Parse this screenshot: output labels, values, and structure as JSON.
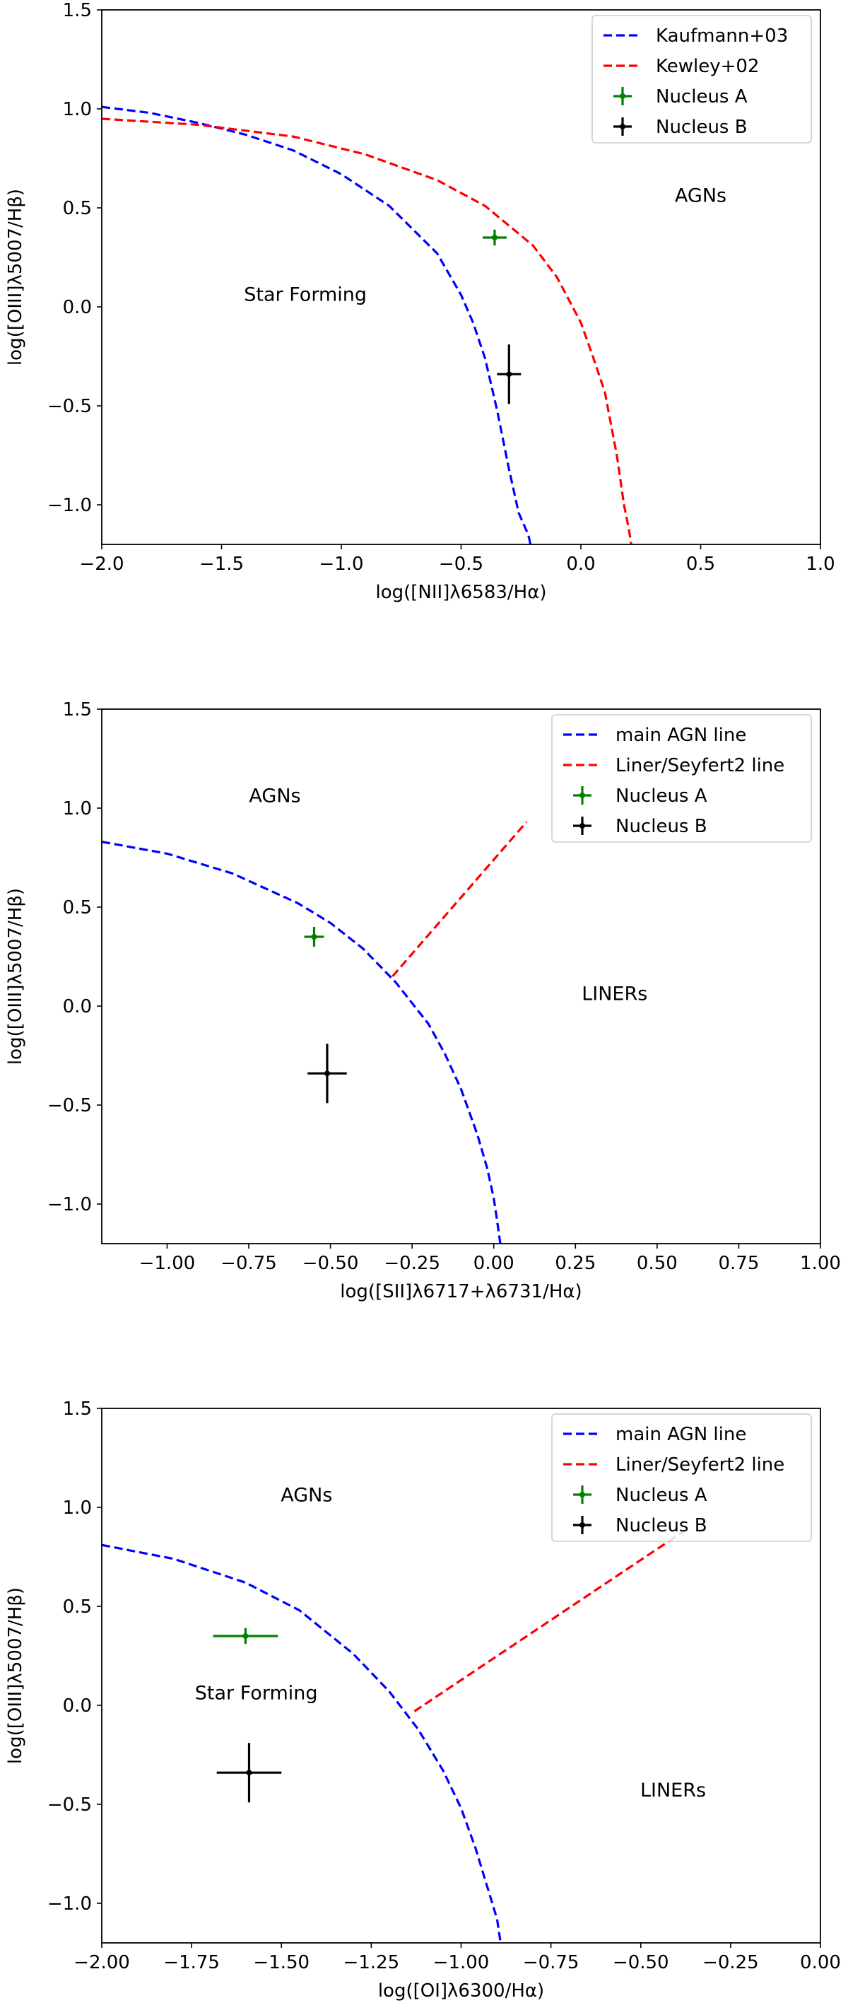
{
  "chart_data": [
    {
      "type": "scatter",
      "xlabel": "log([NII]λ6583/Hα)",
      "ylabel": "log([OIII]λ5007/Hβ)",
      "xlim": [
        -2.0,
        1.0
      ],
      "ylim": [
        -1.2,
        1.5
      ],
      "xticks": [
        -2.0,
        -1.5,
        -1.0,
        -0.5,
        0.0,
        0.5,
        1.0
      ],
      "xtick_labels": [
        "−2.0",
        "−1.5",
        "−1.0",
        "−0.5",
        "0.0",
        "0.5",
        "1.0"
      ],
      "yticks": [
        -1.0,
        -0.5,
        0.0,
        0.5,
        1.0,
        1.5
      ],
      "ytick_labels": [
        "−1.0",
        "−0.5",
        "0.0",
        "0.5",
        "1.0",
        "1.5"
      ],
      "legend_position": "top-right",
      "lines": [
        {
          "name": "Kaufmann+03",
          "color": "#0000ff",
          "style": "dashed",
          "x": [
            -2.0,
            -1.8,
            -1.6,
            -1.4,
            -1.2,
            -1.0,
            -0.8,
            -0.6,
            -0.5,
            -0.45,
            -0.4,
            -0.35,
            -0.3,
            -0.26,
            -0.22,
            -0.21
          ],
          "y": [
            1.01,
            0.98,
            0.93,
            0.87,
            0.79,
            0.67,
            0.51,
            0.27,
            0.06,
            -0.08,
            -0.26,
            -0.52,
            -0.82,
            -1.04,
            -1.15,
            -1.2
          ]
        },
        {
          "name": "Kewley+02",
          "color": "#ff0000",
          "style": "dashed",
          "x": [
            -2.0,
            -1.6,
            -1.2,
            -0.9,
            -0.6,
            -0.4,
            -0.2,
            -0.1,
            0.0,
            0.05,
            0.1,
            0.15,
            0.18,
            0.2,
            0.21
          ],
          "y": [
            0.95,
            0.92,
            0.86,
            0.77,
            0.64,
            0.51,
            0.31,
            0.15,
            -0.08,
            -0.25,
            -0.43,
            -0.75,
            -1.0,
            -1.12,
            -1.2
          ]
        }
      ],
      "points": [
        {
          "name": "Nucleus A",
          "color": "#008000",
          "x": -0.36,
          "y": 0.35,
          "xerr": 0.05,
          "yerr": 0.04
        },
        {
          "name": "Nucleus B",
          "color": "#000000",
          "x": -0.3,
          "y": -0.34,
          "xerr": 0.05,
          "yerr": 0.15
        }
      ],
      "annotations": [
        {
          "text": "AGNs",
          "x": 0.5,
          "y": 0.53
        },
        {
          "text": "Star Forming",
          "x": -1.15,
          "y": 0.03
        }
      ]
    },
    {
      "type": "scatter",
      "xlabel": "log([SII]λ6717+λ6731/Hα)",
      "ylabel": "log([OIII]λ5007/Hβ)",
      "xlim": [
        -1.2,
        1.0
      ],
      "ylim": [
        -1.2,
        1.5
      ],
      "xticks": [
        -1.0,
        -0.75,
        -0.5,
        -0.25,
        0.0,
        0.25,
        0.5,
        0.75,
        1.0
      ],
      "xtick_labels": [
        "−1.00",
        "−0.75",
        "−0.50",
        "−0.25",
        "0.00",
        "0.25",
        "0.50",
        "0.75",
        "1.00"
      ],
      "yticks": [
        -1.0,
        -0.5,
        0.0,
        0.5,
        1.0,
        1.5
      ],
      "ytick_labels": [
        "−1.0",
        "−0.5",
        "0.0",
        "0.5",
        "1.0",
        "1.5"
      ],
      "legend_position": "top-right",
      "lines": [
        {
          "name": "main AGN line",
          "color": "#0000ff",
          "style": "dashed",
          "x": [
            -1.2,
            -1.0,
            -0.8,
            -0.6,
            -0.5,
            -0.4,
            -0.3,
            -0.2,
            -0.15,
            -0.1,
            -0.05,
            -0.02,
            0.0,
            0.01,
            0.02
          ],
          "y": [
            0.83,
            0.77,
            0.67,
            0.52,
            0.42,
            0.29,
            0.12,
            -0.09,
            -0.24,
            -0.42,
            -0.65,
            -0.82,
            -0.97,
            -1.08,
            -1.2
          ]
        },
        {
          "name": "Liner/Seyfert2 line",
          "color": "#ff0000",
          "style": "dashed",
          "x": [
            -0.31,
            0.1
          ],
          "y": [
            0.15,
            0.93
          ]
        }
      ],
      "points": [
        {
          "name": "Nucleus A",
          "color": "#008000",
          "x": -0.55,
          "y": 0.35,
          "xerr": 0.03,
          "yerr": 0.05
        },
        {
          "name": "Nucleus B",
          "color": "#000000",
          "x": -0.51,
          "y": -0.34,
          "xerr": 0.06,
          "yerr": 0.15
        }
      ],
      "annotations": [
        {
          "text": "AGNs",
          "x": -0.67,
          "y": 1.03
        },
        {
          "text": "LINERs",
          "x": 0.37,
          "y": 0.03
        }
      ]
    },
    {
      "type": "scatter",
      "xlabel": "log([OI]λ6300/Hα)",
      "ylabel": "log([OIII]λ5007/Hβ)",
      "xlim": [
        -2.0,
        0.0
      ],
      "ylim": [
        -1.2,
        1.5
      ],
      "xticks": [
        -2.0,
        -1.75,
        -1.5,
        -1.25,
        -1.0,
        -0.75,
        -0.5,
        -0.25,
        0.0
      ],
      "xtick_labels": [
        "−2.00",
        "−1.75",
        "−1.50",
        "−1.25",
        "−1.00",
        "−0.75",
        "−0.50",
        "−0.25",
        "0.00"
      ],
      "yticks": [
        -1.0,
        -0.5,
        0.0,
        0.5,
        1.0,
        1.5
      ],
      "ytick_labels": [
        "−1.0",
        "−0.5",
        "0.0",
        "0.5",
        "1.0",
        "1.5"
      ],
      "legend_position": "top-right",
      "lines": [
        {
          "name": "main AGN line",
          "color": "#0000ff",
          "style": "dashed",
          "x": [
            -2.0,
            -1.8,
            -1.6,
            -1.45,
            -1.3,
            -1.2,
            -1.12,
            -1.05,
            -1.0,
            -0.96,
            -0.93,
            -0.9,
            -0.89
          ],
          "y": [
            0.81,
            0.74,
            0.62,
            0.48,
            0.26,
            0.07,
            -0.12,
            -0.33,
            -0.52,
            -0.72,
            -0.9,
            -1.08,
            -1.2
          ]
        },
        {
          "name": "Liner/Seyfert2 line",
          "color": "#ff0000",
          "style": "dashed",
          "x": [
            -1.13,
            -0.38
          ],
          "y": [
            -0.03,
            0.88
          ]
        }
      ],
      "points": [
        {
          "name": "Nucleus A",
          "color": "#008000",
          "x": -1.6,
          "y": 0.35,
          "xerr": 0.09,
          "yerr": 0.04
        },
        {
          "name": "Nucleus B",
          "color": "#000000",
          "x": -1.59,
          "y": -0.34,
          "xerr": 0.09,
          "yerr": 0.15
        }
      ],
      "annotations": [
        {
          "text": "AGNs",
          "x": -1.43,
          "y": 1.03
        },
        {
          "text": "Star Forming",
          "x": -1.57,
          "y": 0.03
        },
        {
          "text": "LINERs",
          "x": -0.41,
          "y": -0.46
        }
      ]
    }
  ]
}
